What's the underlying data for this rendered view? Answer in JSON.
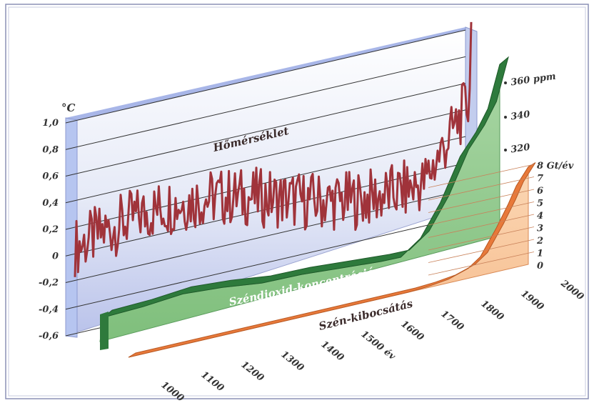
{
  "chart_data": {
    "type": "line",
    "temperature": {
      "name": "Hőmérséklet",
      "unit": "°C",
      "ticks": [
        "1,0",
        "0,8",
        "0,6",
        "0,4",
        "0,2",
        "0",
        "-0,2",
        "-0,4",
        "-0,6"
      ],
      "ylim": [
        -0.6,
        1.0
      ],
      "color": "#a0333a"
    },
    "co2": {
      "name": "Széndioxid-koncentráció",
      "ticks": [
        "360 ppm",
        "340",
        "320"
      ],
      "color": "#2e7a3c"
    },
    "emission": {
      "name": "Szén-kibocsátás",
      "unit": "Gt/év",
      "ticks": [
        "8 Gt/év",
        "7",
        "6",
        "5",
        "4",
        "3",
        "2",
        "1",
        "0"
      ],
      "ylim": [
        0,
        8
      ],
      "color": "#e8793a"
    },
    "x_ticks": [
      "1000",
      "1100",
      "1200",
      "1300",
      "1400",
      "1500 év",
      "1600",
      "1700",
      "1800",
      "1900",
      "2000"
    ],
    "x": [
      1000,
      1100,
      1200,
      1300,
      1400,
      1500,
      1600,
      1700,
      1800,
      1900,
      2000
    ],
    "co2_values": [
      280,
      281,
      283,
      282,
      280,
      280,
      279,
      278,
      278,
      285,
      300,
      320,
      330,
      340,
      360
    ],
    "co2_x": [
      1000,
      1100,
      1200,
      1300,
      1400,
      1500,
      1600,
      1700,
      1750,
      1800,
      1850,
      1900,
      1940,
      1970,
      2000
    ],
    "emission_values": [
      0,
      0,
      0,
      0,
      0,
      0,
      0,
      0,
      0.1,
      0.3,
      0.8,
      1.5,
      2.5,
      3.5,
      5.2,
      6.5,
      7.8
    ],
    "emission_x": [
      1000,
      1100,
      1200,
      1300,
      1400,
      1500,
      1600,
      1700,
      1750,
      1800,
      1850,
      1880,
      1900,
      1920,
      1950,
      1970,
      2000
    ]
  }
}
